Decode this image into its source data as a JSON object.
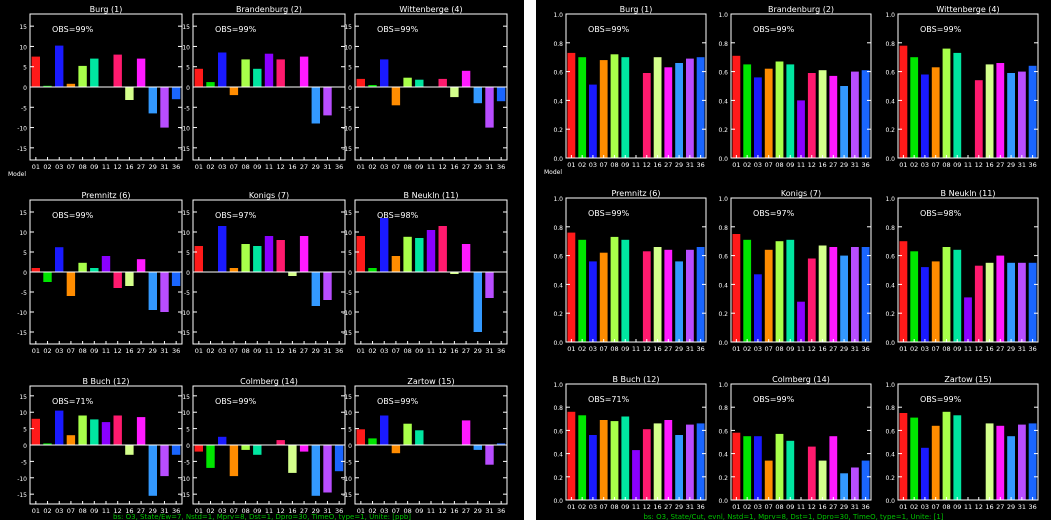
{
  "colors": {
    "background": "#000000",
    "axis": "#ffffff",
    "footer": "#00c000",
    "palette": [
      "#ff1a1a",
      "#00e600",
      "#1a1aff",
      "#ff8c00",
      "#a8ff4a",
      "#00e6a0",
      "#8a00ff",
      "#ff1a6e",
      "#d4ff8c",
      "#ff1aff",
      "#3399ff",
      "#b84dff",
      "#1a66ff",
      "#00ccff"
    ]
  },
  "bar_labels": [
    "01",
    "02",
    "03",
    "07",
    "08",
    "09",
    "11",
    "12",
    "16",
    "27",
    "29",
    "31",
    "36"
  ],
  "model_label": "Model",
  "footer_left": "bs: O3, State/Ew=7, Nstd=1, Mprv=8, Dst=1, Dpro=30, TimeO, type=1, Unite: [ppb]",
  "footer_right": "bs: O3, State/Cut, evnl, Nstd=1, Mprv=8, Dst=1, Dpro=30, TimeO, type=1, Unite: [1]",
  "chart_data": [
    {
      "type": "bar",
      "panel": "left",
      "ylim": [
        -18,
        18
      ],
      "yticks": [
        "15",
        "10",
        "5",
        "0",
        "-5",
        "-10",
        "-15"
      ],
      "subplots": [
        {
          "title": "Burg (1)",
          "obs": "OBS=99%",
          "values": [
            7.5,
            0.3,
            10.2,
            0.8,
            5.2,
            7,
            0,
            8,
            -3.2,
            7,
            -6.5,
            -10,
            -3
          ]
        },
        {
          "title": "Brandenburg (2)",
          "obs": "OBS=99%",
          "values": [
            4.5,
            1.2,
            8.5,
            -2,
            6.8,
            4.5,
            8.2,
            6.8,
            0,
            7.5,
            -9,
            -7,
            0
          ]
        },
        {
          "title": "Wittenberge (4)",
          "obs": "OBS=99%",
          "values": [
            2,
            0.5,
            6.8,
            -4.5,
            2.3,
            1.8,
            0,
            2,
            -2.5,
            4,
            -4,
            -10,
            -3.5
          ]
        },
        {
          "title": "Premnitz (6)",
          "obs": "OBS=99%",
          "values": [
            1,
            -2.5,
            6.2,
            -6,
            2.3,
            1,
            4,
            -4,
            -3.5,
            3.2,
            -9.5,
            -10,
            -3.5
          ]
        },
        {
          "title": "Konigs (7)",
          "obs": "OBS=97%",
          "values": [
            6.5,
            0,
            11.5,
            1,
            7,
            6.5,
            9,
            8,
            -1,
            9,
            -8.5,
            -7,
            0
          ]
        },
        {
          "title": "B Neukln (11)",
          "obs": "OBS=98%",
          "values": [
            9,
            1,
            13.5,
            4,
            8.8,
            8.5,
            10.5,
            11.5,
            -0.5,
            7,
            -15,
            -6.5,
            0
          ]
        },
        {
          "title": "B Buch (12)",
          "obs": "OBS=71%",
          "values": [
            8,
            0.5,
            10.5,
            3,
            9,
            7.8,
            7,
            9,
            -3,
            8.5,
            -15.5,
            -9.5,
            -3
          ]
        },
        {
          "title": "Colmberg (14)",
          "obs": "OBS=99%",
          "values": [
            -2,
            -7,
            2.5,
            -9.5,
            -1.5,
            -3,
            0,
            1.5,
            -8.5,
            -2,
            -15.5,
            -14.5,
            -8
          ]
        },
        {
          "title": "Zartow (15)",
          "obs": "OBS=99%",
          "values": [
            4.8,
            2,
            9,
            -2.5,
            6.5,
            4.5,
            0,
            0,
            0,
            7.5,
            -1.5,
            -6,
            0.5
          ]
        }
      ]
    },
    {
      "type": "bar",
      "panel": "right",
      "ylim": [
        0,
        1
      ],
      "yticks": [
        "1.0",
        "0.8",
        "0.6",
        "0.4",
        "0.2",
        "0.0"
      ],
      "subplots": [
        {
          "title": "Burg (1)",
          "obs": "OBS=99%",
          "values": [
            0.73,
            0.7,
            0.51,
            0.68,
            0.72,
            0.7,
            0,
            0.59,
            0.7,
            0.63,
            0.66,
            0.69,
            0.7
          ]
        },
        {
          "title": "Brandenburg (2)",
          "obs": "OBS=99%",
          "values": [
            0.71,
            0.65,
            0.56,
            0.62,
            0.67,
            0.65,
            0.4,
            0.59,
            0.61,
            0.57,
            0.5,
            0.6,
            0.61
          ]
        },
        {
          "title": "Wittenberge (4)",
          "obs": "OBS=99%",
          "values": [
            0.78,
            0.7,
            0.58,
            0.63,
            0.76,
            0.73,
            0,
            0.54,
            0.65,
            0.66,
            0.59,
            0.6,
            0.64
          ]
        },
        {
          "title": "Premnitz (6)",
          "obs": "OBS=99%",
          "values": [
            0.76,
            0.71,
            0.56,
            0.62,
            0.73,
            0.71,
            0,
            0.63,
            0.66,
            0.64,
            0.56,
            0.64,
            0.66
          ]
        },
        {
          "title": "Konigs (7)",
          "obs": "OBS=97%",
          "values": [
            0.75,
            0.71,
            0.47,
            0.64,
            0.7,
            0.71,
            0.28,
            0.58,
            0.67,
            0.66,
            0.6,
            0.66,
            0.66
          ]
        },
        {
          "title": "B Neukln (11)",
          "obs": "OBS=98%",
          "values": [
            0.7,
            0.63,
            0.52,
            0.56,
            0.66,
            0.64,
            0.31,
            0.53,
            0.55,
            0.6,
            0.55,
            0.55,
            0.55
          ]
        },
        {
          "title": "B Buch (12)",
          "obs": "OBS=71%",
          "values": [
            0.76,
            0.73,
            0.56,
            0.69,
            0.68,
            0.72,
            0.43,
            0.61,
            0.66,
            0.69,
            0.56,
            0.65,
            0.66
          ]
        },
        {
          "title": "Colmberg (14)",
          "obs": "OBS=99%",
          "values": [
            0.58,
            0.55,
            0.55,
            0.34,
            0.57,
            0.51,
            0,
            0.46,
            0.34,
            0.55,
            0.23,
            0.28,
            0.34
          ]
        },
        {
          "title": "Zartow (15)",
          "obs": "OBS=99%",
          "values": [
            0.75,
            0.71,
            0.45,
            0.64,
            0.76,
            0.73,
            0,
            0,
            0.66,
            0.64,
            0.55,
            0.65,
            0.66
          ]
        }
      ]
    }
  ]
}
